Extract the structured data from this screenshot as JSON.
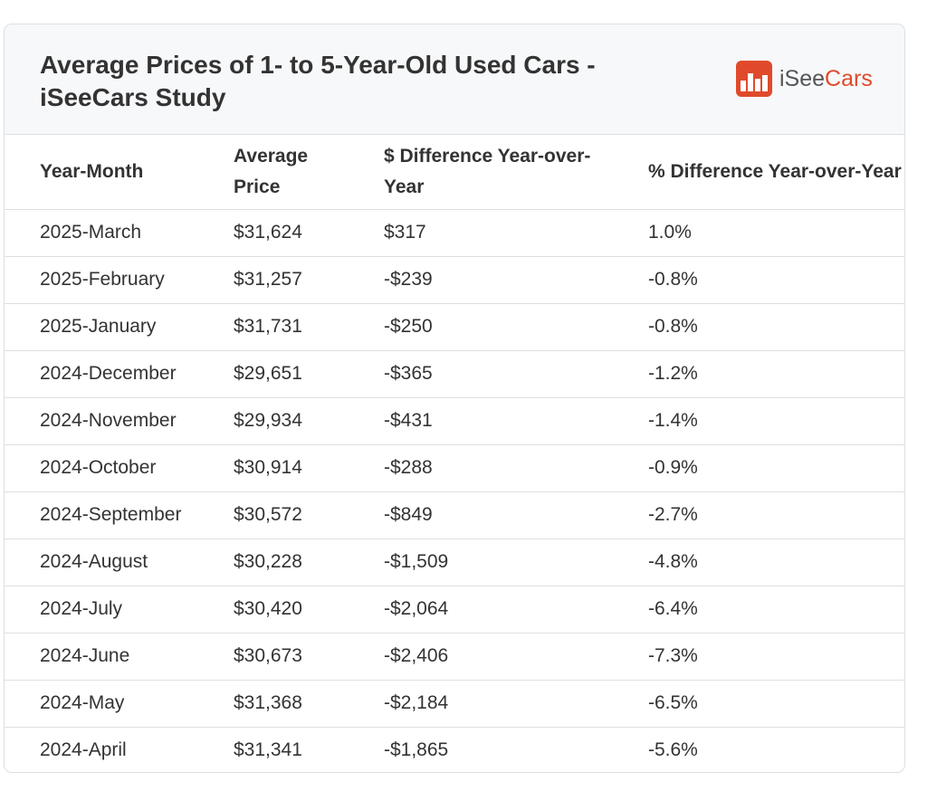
{
  "header": {
    "title": "Average Prices of 1- to 5-Year-Old Used Cars - iSeeCars Study",
    "logo": {
      "prefix": "iSee",
      "suffix": "Cars",
      "brand_color": "#e04a2a",
      "icon": "car-lot-icon"
    }
  },
  "table": {
    "columns": [
      "Year-Month",
      "Average Price",
      "$ Difference Year-over-Year",
      "% Difference Year-over-Year"
    ],
    "rows": [
      [
        "2025-March",
        "$31,624",
        "$317",
        "1.0%"
      ],
      [
        "2025-February",
        "$31,257",
        "-$239",
        "-0.8%"
      ],
      [
        "2025-January",
        "$31,731",
        "-$250",
        "-0.8%"
      ],
      [
        "2024-December",
        "$29,651",
        "-$365",
        "-1.2%"
      ],
      [
        "2024-November",
        "$29,934",
        "-$431",
        "-1.4%"
      ],
      [
        "2024-October",
        "$30,914",
        "-$288",
        "-0.9%"
      ],
      [
        "2024-September",
        "$30,572",
        "-$849",
        "-2.7%"
      ],
      [
        "2024-August",
        "$30,228",
        "-$1,509",
        "-4.8%"
      ],
      [
        "2024-July",
        "$30,420",
        "-$2,064",
        "-6.4%"
      ],
      [
        "2024-June",
        "$30,673",
        "-$2,406",
        "-7.3%"
      ],
      [
        "2024-May",
        "$31,368",
        "-$2,184",
        "-6.5%"
      ],
      [
        "2024-April",
        "$31,341",
        "-$1,865",
        "-5.6%"
      ]
    ]
  }
}
